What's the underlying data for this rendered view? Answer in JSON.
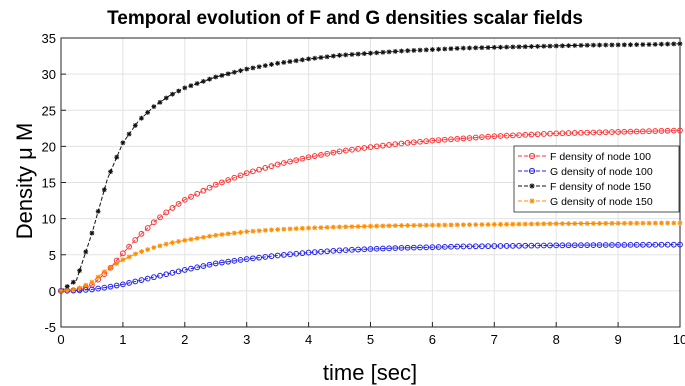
{
  "chart_data": {
    "type": "line",
    "title": "Temporal evolution of F and G densities scalar fields",
    "xlabel": "time [sec]",
    "ylabel": "Density μ M",
    "xlim": [
      0,
      10
    ],
    "ylim": [
      -5,
      35
    ],
    "xticks": [
      "0",
      "1",
      "2",
      "3",
      "4",
      "5",
      "6",
      "7",
      "8",
      "9",
      "10"
    ],
    "yticks": [
      "-5",
      "0",
      "5",
      "10",
      "15",
      "20",
      "25",
      "30",
      "35"
    ],
    "grid": true,
    "legend_position": "right",
    "x": [
      0,
      0.25,
      0.5,
      0.75,
      1,
      1.25,
      1.5,
      1.75,
      2,
      2.5,
      3,
      3.5,
      4,
      4.5,
      5,
      5.5,
      6,
      6.5,
      7,
      7.5,
      8,
      8.5,
      9,
      9.5,
      10
    ],
    "series": [
      {
        "name": "F density of node 100",
        "color": "#ff3333",
        "marker": "circle",
        "values": [
          0,
          0.1,
          0.8,
          2.7,
          5.2,
          7.5,
          9.5,
          11.2,
          12.6,
          14.7,
          16.3,
          17.5,
          18.5,
          19.3,
          19.9,
          20.4,
          20.8,
          21.1,
          21.4,
          21.6,
          21.8,
          21.9,
          22.0,
          22.1,
          22.2
        ]
      },
      {
        "name": "G density of node 100",
        "color": "#2222ee",
        "marker": "circle",
        "values": [
          0,
          0.05,
          0.2,
          0.5,
          0.9,
          1.4,
          1.9,
          2.4,
          2.9,
          3.8,
          4.4,
          4.9,
          5.3,
          5.6,
          5.8,
          5.95,
          6.05,
          6.15,
          6.2,
          6.25,
          6.3,
          6.33,
          6.36,
          6.38,
          6.4
        ]
      },
      {
        "name": "F density of node 150",
        "color": "#111111",
        "marker": "asterisk",
        "values": [
          0,
          1.5,
          8,
          15.5,
          20.5,
          23.5,
          25.5,
          27,
          28.1,
          29.6,
          30.7,
          31.5,
          32.1,
          32.6,
          32.9,
          33.2,
          33.4,
          33.6,
          33.7,
          33.8,
          33.9,
          34.0,
          34.05,
          34.1,
          34.2
        ]
      },
      {
        "name": "G density of node 150",
        "color": "#ff8c00",
        "marker": "asterisk",
        "values": [
          0,
          0.2,
          1.2,
          3.0,
          4.3,
          5.3,
          6.0,
          6.6,
          7.0,
          7.7,
          8.2,
          8.5,
          8.7,
          8.85,
          8.95,
          9.05,
          9.1,
          9.15,
          9.2,
          9.25,
          9.3,
          9.33,
          9.36,
          9.38,
          9.4
        ]
      }
    ]
  }
}
